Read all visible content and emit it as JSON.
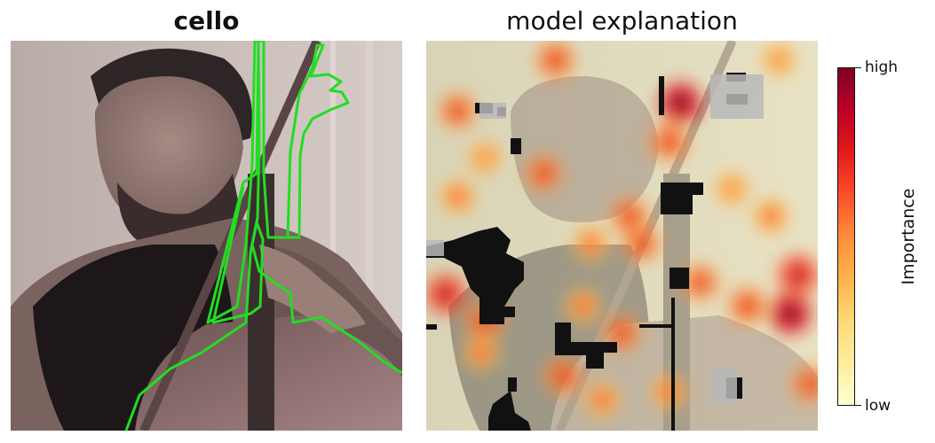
{
  "panels": {
    "left_title": "cello",
    "right_title": "model explanation"
  },
  "chart_data": {
    "type": "heatmap",
    "title": "",
    "colorbar": {
      "label": "Importance",
      "tick_high": "high",
      "tick_low": "low",
      "colormap": [
        "#ffffcc",
        "#ffeda0",
        "#fed976",
        "#feb24c",
        "#fd8d3c",
        "#fc4e2a",
        "#e31a1c",
        "#bd0026",
        "#800026"
      ]
    },
    "segment_outline_color": "#22dd22",
    "heat_peaks": [
      {
        "x": 0.65,
        "y": 0.16,
        "v": 1.0
      },
      {
        "x": 0.62,
        "y": 0.26,
        "v": 0.8
      },
      {
        "x": 0.33,
        "y": 0.05,
        "v": 0.8
      },
      {
        "x": 0.08,
        "y": 0.18,
        "v": 0.7
      },
      {
        "x": 0.3,
        "y": 0.34,
        "v": 0.7
      },
      {
        "x": 0.08,
        "y": 0.4,
        "v": 0.6
      },
      {
        "x": 0.52,
        "y": 0.45,
        "v": 0.75
      },
      {
        "x": 0.55,
        "y": 0.52,
        "v": 0.7
      },
      {
        "x": 0.42,
        "y": 0.52,
        "v": 0.6
      },
      {
        "x": 0.7,
        "y": 0.62,
        "v": 0.7
      },
      {
        "x": 0.95,
        "y": 0.6,
        "v": 0.9
      },
      {
        "x": 0.93,
        "y": 0.7,
        "v": 1.0
      },
      {
        "x": 0.82,
        "y": 0.68,
        "v": 0.8
      },
      {
        "x": 0.05,
        "y": 0.65,
        "v": 0.9
      },
      {
        "x": 0.15,
        "y": 0.72,
        "v": 0.8
      },
      {
        "x": 0.14,
        "y": 0.8,
        "v": 0.6
      },
      {
        "x": 0.4,
        "y": 0.68,
        "v": 0.6
      },
      {
        "x": 0.5,
        "y": 0.75,
        "v": 0.7
      },
      {
        "x": 0.35,
        "y": 0.86,
        "v": 0.75
      },
      {
        "x": 0.45,
        "y": 0.92,
        "v": 0.6
      },
      {
        "x": 0.62,
        "y": 0.9,
        "v": 0.6
      },
      {
        "x": 0.88,
        "y": 0.45,
        "v": 0.6
      },
      {
        "x": 0.15,
        "y": 0.3,
        "v": 0.5
      },
      {
        "x": 0.9,
        "y": 0.05,
        "v": 0.45
      },
      {
        "x": 0.78,
        "y": 0.38,
        "v": 0.5
      },
      {
        "x": 0.98,
        "y": 0.88,
        "v": 0.7
      }
    ]
  }
}
